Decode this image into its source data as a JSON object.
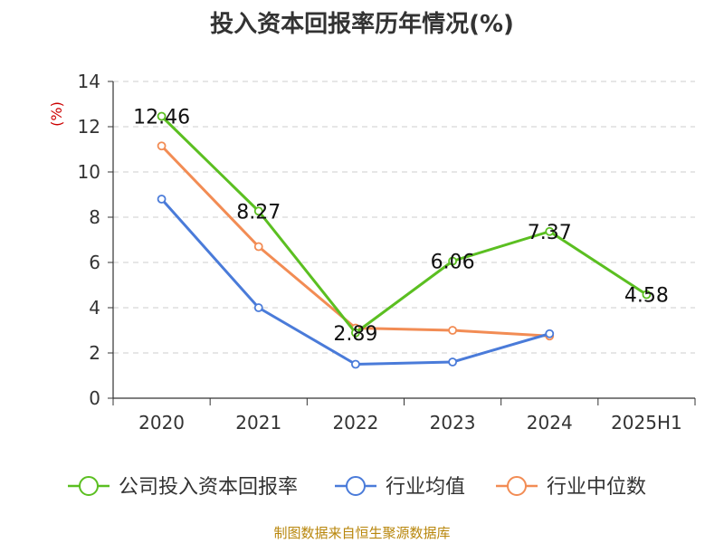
{
  "chart_data": {
    "type": "line",
    "title": "投入资本回报率历年情况(%)",
    "ylabel": "(%)",
    "xlabel": "",
    "categories": [
      "2020",
      "2021",
      "2022",
      "2023",
      "2024",
      "2025H1"
    ],
    "ylim": [
      0,
      14
    ],
    "yticks": [
      0,
      2,
      4,
      6,
      8,
      10,
      12,
      14
    ],
    "grid": true,
    "legend_position": "bottom",
    "series": [
      {
        "name": "公司投入资本回报率",
        "color": "#5bbf21",
        "values": [
          12.46,
          8.27,
          2.89,
          6.06,
          7.37,
          4.58
        ],
        "labels": [
          "12.46",
          "8.27",
          "2.89",
          "6.06",
          "7.37",
          "4.58"
        ]
      },
      {
        "name": "行业均值",
        "color": "#4a7bd9",
        "values": [
          8.8,
          4.0,
          1.5,
          1.6,
          2.85,
          null
        ]
      },
      {
        "name": "行业中位数",
        "color": "#f28c54",
        "values": [
          11.15,
          6.7,
          3.1,
          3.0,
          2.75,
          null
        ]
      }
    ]
  },
  "footer": "制图数据来自恒生聚源数据库"
}
